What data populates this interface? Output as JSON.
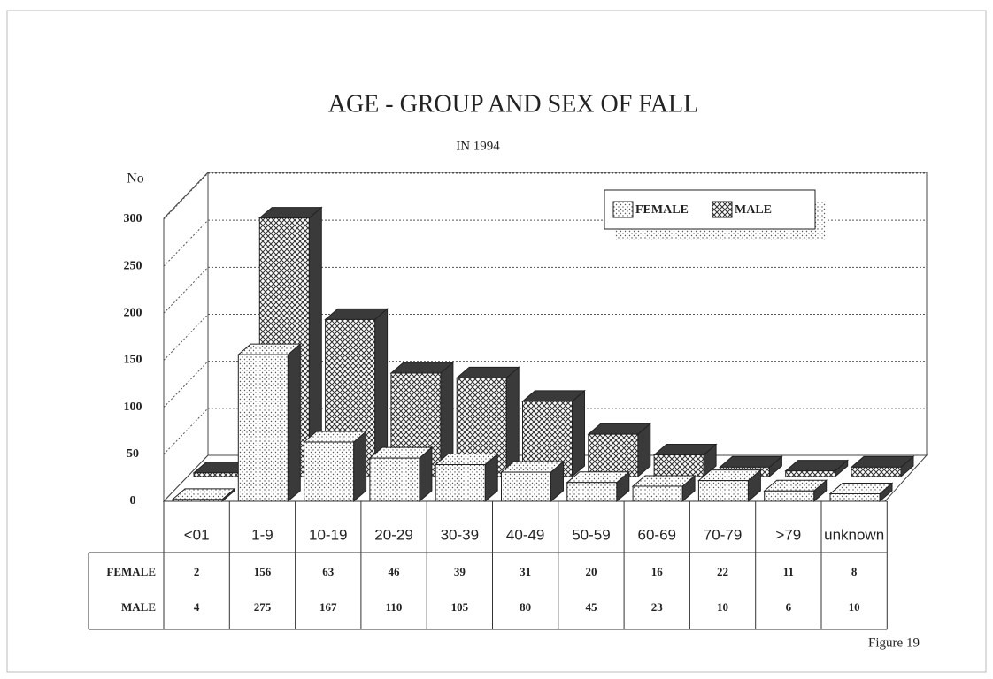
{
  "chart_data": {
    "type": "bar3d",
    "title": "AGE - GROUP AND SEX  OF FALL",
    "subtitle": "IN 1994",
    "y_label": "No",
    "footnote": "Figure 19",
    "categories": [
      "<01",
      "1-9",
      "10-19",
      "20-29",
      "30-39",
      "40-49",
      "50-59",
      "60-69",
      "70-79",
      ">79",
      "unknown"
    ],
    "series": [
      {
        "name": "FEMALE",
        "color": "#555555",
        "values": [
          2,
          156,
          63,
          46,
          39,
          31,
          20,
          16,
          22,
          11,
          8
        ]
      },
      {
        "name": "MALE",
        "color": "#333333",
        "values": [
          4,
          275,
          167,
          110,
          105,
          80,
          45,
          23,
          10,
          6,
          10
        ]
      }
    ],
    "ylim": [
      0,
      300
    ],
    "yticks": [
      0,
      50,
      100,
      150,
      200,
      250,
      300
    ],
    "grid": true,
    "legend": "top-right",
    "data_table": true
  }
}
